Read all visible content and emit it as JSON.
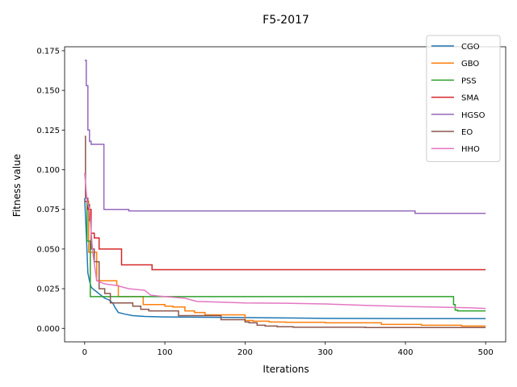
{
  "chart_data": {
    "type": "line",
    "title": "F5-2017",
    "xlabel": "Iterations",
    "ylabel": "Fitness value",
    "xlim": [
      -25,
      525
    ],
    "ylim": [
      -0.0085,
      0.1775
    ],
    "xticks": [
      0,
      100,
      200,
      300,
      400,
      500
    ],
    "xtick_labels": [
      "0",
      "100",
      "200",
      "300",
      "400",
      "500"
    ],
    "yticks": [
      0.0,
      0.025,
      0.05,
      0.075,
      0.1,
      0.125,
      0.15,
      0.175
    ],
    "ytick_labels": [
      "0.000",
      "0.025",
      "0.050",
      "0.075",
      "0.100",
      "0.125",
      "0.150",
      "0.175"
    ],
    "grid": false,
    "legend_position": "top-right",
    "series": [
      {
        "name": "CGO",
        "color": "#1f77b4",
        "step": false,
        "points": [
          [
            0,
            0.082
          ],
          [
            2,
            0.06
          ],
          [
            4,
            0.035
          ],
          [
            6,
            0.03
          ],
          [
            8,
            0.026
          ],
          [
            10,
            0.025
          ],
          [
            15,
            0.023
          ],
          [
            20,
            0.021
          ],
          [
            25,
            0.019
          ],
          [
            30,
            0.018
          ],
          [
            35,
            0.016
          ],
          [
            38,
            0.013
          ],
          [
            42,
            0.01
          ],
          [
            50,
            0.009
          ],
          [
            60,
            0.008
          ],
          [
            75,
            0.0075
          ],
          [
            100,
            0.0072
          ],
          [
            150,
            0.007
          ],
          [
            200,
            0.0068
          ],
          [
            300,
            0.0063
          ],
          [
            400,
            0.0062
          ],
          [
            500,
            0.0062
          ]
        ]
      },
      {
        "name": "GBO",
        "color": "#ff7f0e",
        "step": true,
        "points": [
          [
            0,
            0.08
          ],
          [
            5,
            0.048
          ],
          [
            15,
            0.03
          ],
          [
            40,
            0.027
          ],
          [
            42,
            0.02
          ],
          [
            73,
            0.015
          ],
          [
            100,
            0.014
          ],
          [
            110,
            0.0135
          ],
          [
            125,
            0.011
          ],
          [
            137,
            0.01
          ],
          [
            150,
            0.0085
          ],
          [
            200,
            0.005
          ],
          [
            210,
            0.0045
          ],
          [
            230,
            0.004
          ],
          [
            250,
            0.0038
          ],
          [
            300,
            0.0035
          ],
          [
            370,
            0.0025
          ],
          [
            420,
            0.002
          ],
          [
            470,
            0.0015
          ],
          [
            500,
            0.0015
          ]
        ]
      },
      {
        "name": "PSS",
        "color": "#2ca02c",
        "step": true,
        "points": [
          [
            0,
            0.08
          ],
          [
            3,
            0.055
          ],
          [
            7,
            0.02
          ],
          [
            458,
            0.02
          ],
          [
            460,
            0.015
          ],
          [
            462,
            0.0115
          ],
          [
            465,
            0.011
          ],
          [
            500,
            0.011
          ]
        ]
      },
      {
        "name": "SMA",
        "color": "#d62728",
        "step": true,
        "points": [
          [
            0,
            0.08
          ],
          [
            4,
            0.075
          ],
          [
            8,
            0.06
          ],
          [
            12,
            0.057
          ],
          [
            18,
            0.05
          ],
          [
            46,
            0.04
          ],
          [
            84,
            0.037
          ],
          [
            500,
            0.037
          ]
        ]
      },
      {
        "name": "HGSO",
        "color": "#9467bd",
        "step": true,
        "points": [
          [
            0,
            0.169
          ],
          [
            2,
            0.153
          ],
          [
            4,
            0.125
          ],
          [
            6,
            0.118
          ],
          [
            8,
            0.116
          ],
          [
            22,
            0.116
          ],
          [
            24,
            0.075
          ],
          [
            55,
            0.074
          ],
          [
            412,
            0.0725
          ],
          [
            500,
            0.0725
          ]
        ]
      },
      {
        "name": "EO",
        "color": "#8c564b",
        "step": true,
        "points": [
          [
            0,
            0.121
          ],
          [
            1,
            0.082
          ],
          [
            4,
            0.078
          ],
          [
            6,
            0.068
          ],
          [
            8,
            0.05
          ],
          [
            12,
            0.042
          ],
          [
            18,
            0.025
          ],
          [
            25,
            0.022
          ],
          [
            32,
            0.016
          ],
          [
            60,
            0.014
          ],
          [
            70,
            0.012
          ],
          [
            80,
            0.011
          ],
          [
            117,
            0.008
          ],
          [
            170,
            0.0055
          ],
          [
            200,
            0.004
          ],
          [
            205,
            0.0035
          ],
          [
            215,
            0.002
          ],
          [
            225,
            0.0015
          ],
          [
            240,
            0.001
          ],
          [
            260,
            0.0007
          ],
          [
            350,
            0.0005
          ],
          [
            500,
            0.0005
          ]
        ]
      },
      {
        "name": "HHO",
        "color": "#e377c2",
        "step": false,
        "points": [
          [
            0,
            0.098
          ],
          [
            3,
            0.08
          ],
          [
            6,
            0.075
          ],
          [
            10,
            0.048
          ],
          [
            15,
            0.03
          ],
          [
            20,
            0.029
          ],
          [
            25,
            0.028
          ],
          [
            40,
            0.027
          ],
          [
            55,
            0.025
          ],
          [
            75,
            0.024
          ],
          [
            82,
            0.021
          ],
          [
            90,
            0.0205
          ],
          [
            100,
            0.02
          ],
          [
            125,
            0.019
          ],
          [
            140,
            0.017
          ],
          [
            200,
            0.016
          ],
          [
            250,
            0.0158
          ],
          [
            300,
            0.0154
          ],
          [
            350,
            0.0145
          ],
          [
            400,
            0.0138
          ],
          [
            450,
            0.0133
          ],
          [
            480,
            0.013
          ],
          [
            500,
            0.0125
          ]
        ]
      }
    ]
  }
}
